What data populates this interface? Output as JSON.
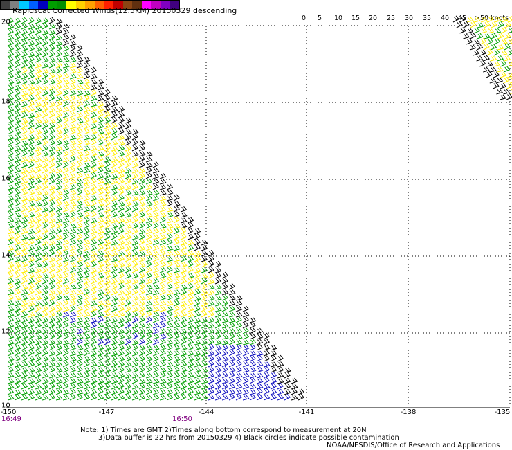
{
  "title": "Rapidscat Corrected Winds(12.5KM) 20150329 descending",
  "colorbar": {
    "colors": [
      "#404040",
      "#808080",
      "#00c8ff",
      "#0060ff",
      "#0000c0",
      "#00a000",
      "#009000",
      "#ffff00",
      "#ffd000",
      "#ffa000",
      "#ff6000",
      "#ff2000",
      "#c00000",
      "#8b4513",
      "#603010",
      "#ff00ff",
      "#c000c0",
      "#8000c0",
      "#400080"
    ],
    "ticks": [
      "0",
      "5",
      "10",
      "15",
      "20",
      "25",
      "30",
      "35",
      "40",
      "45",
      ">50 knots"
    ]
  },
  "axes": {
    "y_ticks": [
      "20",
      "18",
      "16",
      "14",
      "12",
      "10"
    ],
    "x_ticks": [
      "-150",
      "-147",
      "-144",
      "-141",
      "-138",
      "-135"
    ]
  },
  "times": [
    "16:49",
    "16:50"
  ],
  "notes": {
    "line1": "Note: 1) Times are GMT 2)Times along bottom correspond to measurement at 20N",
    "line2": "3)Data buffer is 22 hrs from 20150329 4) Black circles indicate possible contamination",
    "credit": "NOAA/NESDIS/Office of Research and Applications"
  },
  "wind_colors": {
    "light": "#000000",
    "moderate": "#00a000",
    "fresh": "#ffee00",
    "calm": "#1010c0"
  }
}
